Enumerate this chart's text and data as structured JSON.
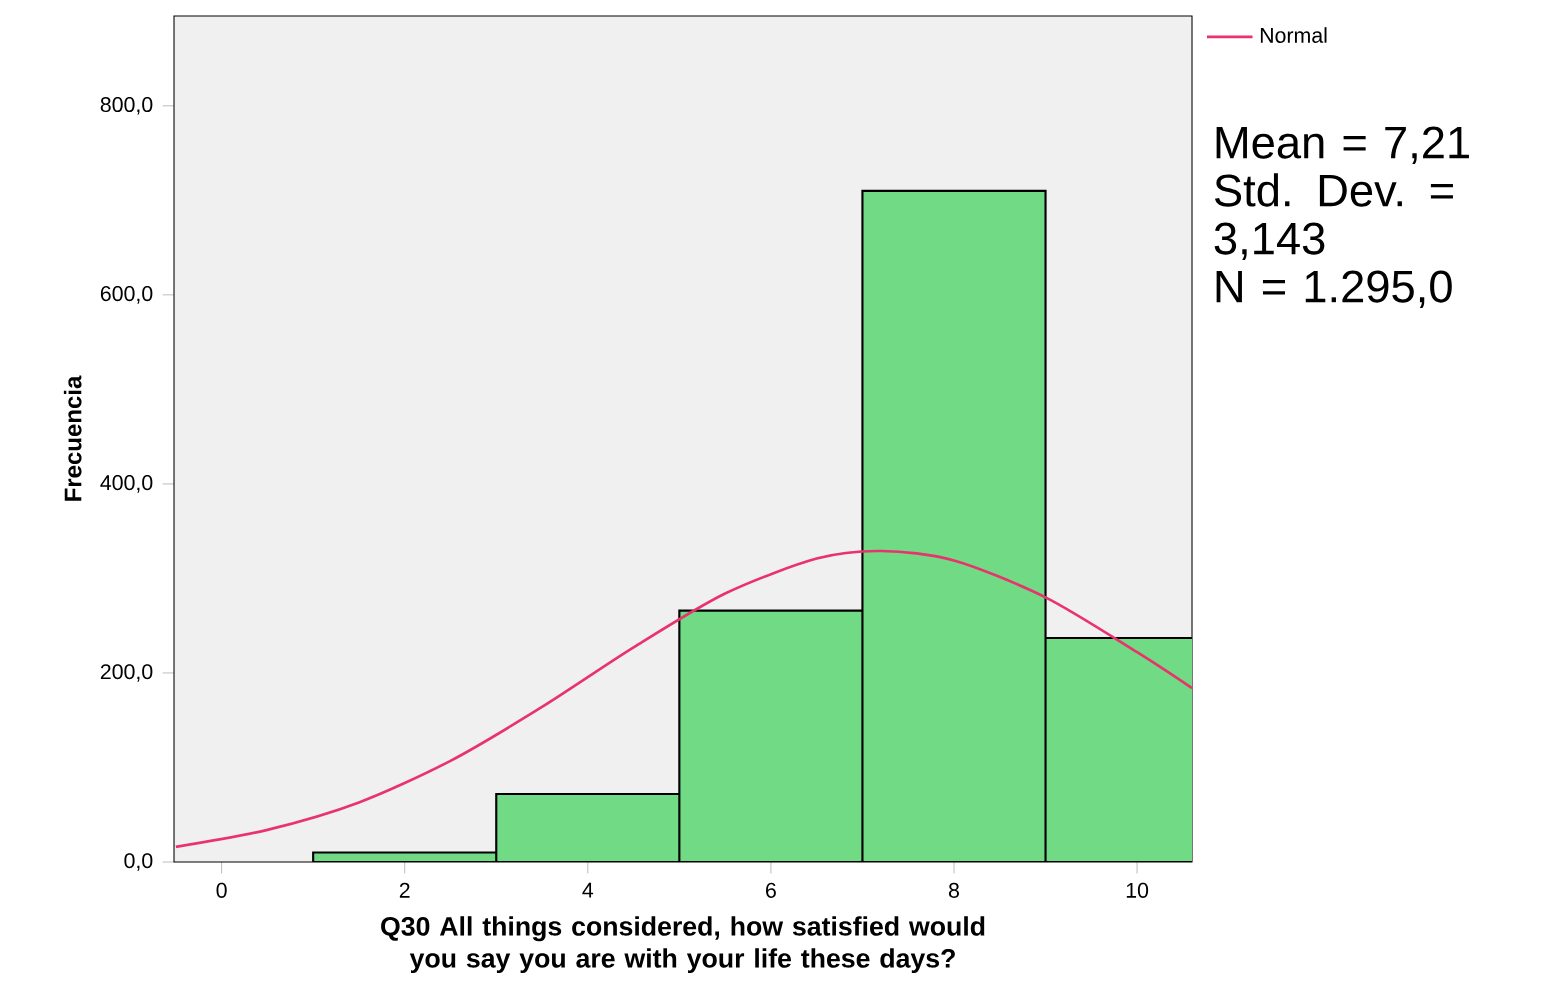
{
  "chart_data": {
    "type": "histogram",
    "xlabel": "Q30 All things considered, how satisfied would you say you are with your life these days?",
    "ylabel": "Frecuencia",
    "series": [
      {
        "color": "#70db84",
        "bins": [
          1,
          3,
          5,
          7,
          9,
          11
        ],
        "values": [
          10,
          72,
          266,
          710,
          237
        ]
      },
      {
        "type": "line",
        "name": "Normal",
        "color": "#e8336f",
        "x": [
          -0.5,
          0.5,
          1.5,
          2.5,
          3.5,
          4.5,
          5.5,
          6.5,
          7.21,
          8,
          9,
          10,
          10.6
        ],
        "values": [
          16,
          34,
          63,
          107,
          164,
          227,
          284,
          321,
          329,
          319,
          280,
          222,
          184
        ]
      }
    ],
    "xlim": [
      -0.52,
      10.6
    ],
    "ylim": [
      0,
      895
    ],
    "xticks": [
      0,
      2,
      4,
      6,
      8,
      10
    ],
    "yticks": [
      {
        "value": 0,
        "label": "0,0"
      },
      {
        "value": 200,
        "label": "200,0"
      },
      {
        "value": 400,
        "label": "400,0"
      },
      {
        "value": 600,
        "label": "600,0"
      },
      {
        "value": 800,
        "label": "800,0"
      }
    ],
    "legend": "top right",
    "annotations": [
      "Mean = 7,21",
      "Std. Dev. = 3,143",
      "N = 1.295,0"
    ]
  }
}
